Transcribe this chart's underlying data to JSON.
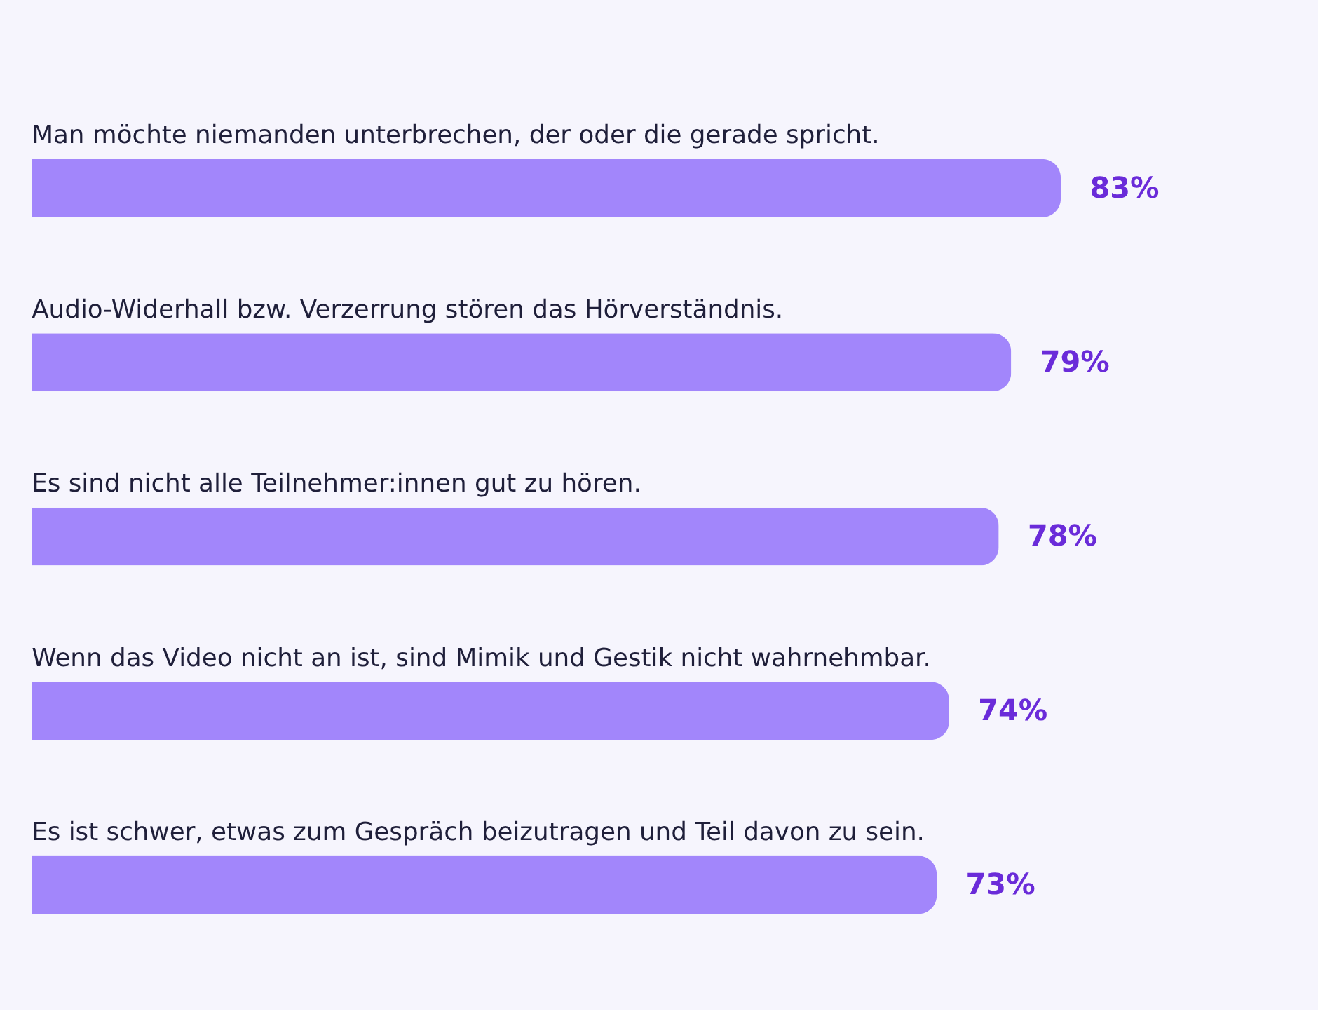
{
  "chart_data": {
    "type": "bar",
    "orientation": "horizontal",
    "color": "#a286fb",
    "categories": [
      "Man möchte niemanden unterbrechen, der oder die gerade spricht.",
      "Audio-Widerhall bzw. Verzerrung stören das Hörverständnis.",
      "Es sind nicht alle Teilnehmer:innen gut zu hören.",
      "Wenn das Video nicht an ist, sind Mimik und Gestik nicht wahrnehmbar.",
      "Es ist schwer, etwas zum Gespräch beizutragen und Teil davon zu sein."
    ],
    "values": [
      83,
      79,
      78,
      74,
      73
    ],
    "value_labels": [
      "83%",
      "79%",
      "78%",
      "74%",
      "73%"
    ]
  }
}
